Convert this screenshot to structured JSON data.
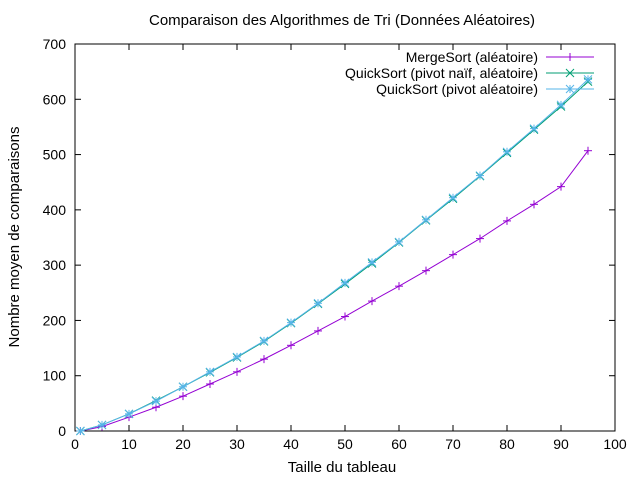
{
  "chart_data": {
    "type": "line",
    "title": "Comparaison des Algorithmes de Tri (Données Aléatoires)",
    "xlabel": "Taille du tableau",
    "ylabel": "Nombre moyen de comparaisons",
    "xlim": [
      0,
      100
    ],
    "ylim": [
      0,
      700
    ],
    "xticks": [
      0,
      10,
      20,
      30,
      40,
      50,
      60,
      70,
      80,
      90,
      100
    ],
    "yticks": [
      0,
      100,
      200,
      300,
      400,
      500,
      600,
      700
    ],
    "grid": false,
    "legend_position": "top-right",
    "x": [
      1,
      5,
      10,
      15,
      20,
      25,
      30,
      35,
      40,
      45,
      50,
      55,
      60,
      65,
      70,
      75,
      80,
      85,
      90,
      95
    ],
    "series": [
      {
        "name": "MergeSort (aléatoire)",
        "marker": "plus",
        "color": "#9400d3",
        "values": [
          0,
          8,
          25,
          43,
          63,
          85,
          107,
          130,
          155,
          181,
          207,
          235,
          262,
          290,
          319,
          348,
          380,
          410,
          442,
          507
        ]
      },
      {
        "name": "QuickSort (pivot naïf, aléatoire)",
        "marker": "x",
        "color": "#009e73",
        "values": [
          0,
          11,
          31,
          55,
          80,
          106,
          133,
          162,
          195,
          230,
          266,
          303,
          341,
          381,
          420,
          461,
          503,
          545,
          587,
          632
        ]
      },
      {
        "name": "QuickSort (pivot aléatoire)",
        "marker": "star",
        "color": "#56b4e9",
        "values": [
          0,
          11,
          31,
          54,
          80,
          107,
          134,
          163,
          196,
          231,
          268,
          305,
          342,
          382,
          422,
          462,
          505,
          547,
          590,
          636
        ]
      }
    ]
  }
}
